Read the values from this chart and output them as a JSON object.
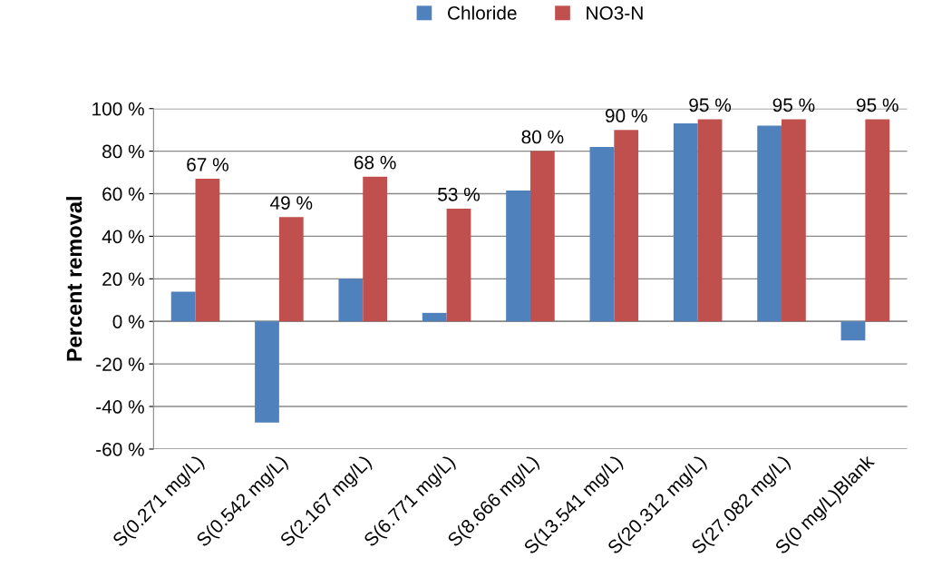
{
  "chart_data": {
    "type": "bar",
    "ylabel": "Percent removal",
    "categories": [
      "S(0.271 mg/L)",
      "S(0.542 mg/L)",
      "S(2.167 mg/L)",
      "S(6.771 mg/L)",
      "S(8.666 mg/L)",
      "S(13.541 mg/L)",
      "S(20.312 mg/L)",
      "S(27.082 mg/L)",
      "S(0 mg/L)Blank"
    ],
    "series": [
      {
        "name": "Chloride",
        "color": "#4f81bd",
        "values": [
          14,
          -47.5,
          20,
          4,
          61.5,
          82,
          93,
          92,
          -9
        ]
      },
      {
        "name": "NO3-N",
        "color": "#c0504d",
        "values": [
          67,
          49,
          68,
          53,
          80,
          90,
          95,
          95,
          95
        ],
        "value_labels": [
          "67 %",
          "49 %",
          "68 %",
          "53 %",
          "80 %",
          "90 %",
          "95 %",
          "95 %",
          "95 %"
        ]
      }
    ],
    "ylim": [
      -60,
      100
    ],
    "yticks": [
      {
        "value": -60,
        "label": "-60 %"
      },
      {
        "value": -40,
        "label": "-40 %"
      },
      {
        "value": -20,
        "label": "-20 %"
      },
      {
        "value": 0,
        "label": "0 %"
      },
      {
        "value": 20,
        "label": "20 %"
      },
      {
        "value": 40,
        "label": "40 %"
      },
      {
        "value": 60,
        "label": "60 %"
      },
      {
        "value": 80,
        "label": "80 %"
      },
      {
        "value": 100,
        "label": "100 %"
      }
    ],
    "grid": "y",
    "legend": "top"
  }
}
